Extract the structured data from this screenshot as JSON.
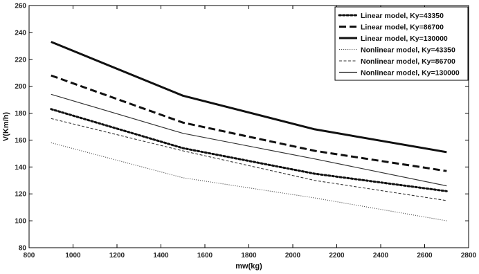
{
  "chart_data": {
    "type": "line",
    "title": "",
    "xlabel": "mw(kg)",
    "ylabel": "V(Km/h)",
    "xlim": [
      800,
      2800
    ],
    "ylim": [
      80,
      260
    ],
    "xticks": [
      800,
      1000,
      1200,
      1400,
      1600,
      1800,
      2000,
      2200,
      2400,
      2600,
      2800
    ],
    "yticks": [
      80,
      100,
      120,
      140,
      160,
      180,
      200,
      220,
      240,
      260
    ],
    "x": [
      900,
      1500,
      2100,
      2700
    ],
    "grid": false,
    "legend_position": "top-right",
    "series": [
      {
        "name": "Linear model, Ky=43350",
        "values": [
          183,
          154,
          135,
          122
        ],
        "color": "#111111",
        "style": "dotted-thick"
      },
      {
        "name": "Linear model, Ky=86700",
        "values": [
          208,
          173,
          152,
          137
        ],
        "color": "#111111",
        "style": "dashed-thick"
      },
      {
        "name": "Linear model, Ky=130000",
        "values": [
          233,
          193,
          168,
          151
        ],
        "color": "#111111",
        "style": "solid-thick"
      },
      {
        "name": "Nonlinear model, Ky=43350",
        "values": [
          158,
          132,
          117,
          100
        ],
        "color": "#555555",
        "style": "dotted-thin"
      },
      {
        "name": "Nonlinear model, Ky=86700",
        "values": [
          176,
          152,
          130,
          115
        ],
        "color": "#333333",
        "style": "dashed-thin"
      },
      {
        "name": "Nonlinear model, Ky=130000",
        "values": [
          194,
          165,
          146,
          126
        ],
        "color": "#333333",
        "style": "solid-thin"
      }
    ]
  }
}
